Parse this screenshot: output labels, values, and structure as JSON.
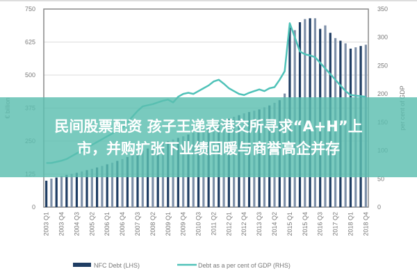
{
  "banner": {
    "line1": "民间股票配资 孩子王递表港交所寻求“A+H”上",
    "line2": "市，并购扩张下业绩回暖与商誉高企并存"
  },
  "chart_data": {
    "type": "bar+line",
    "ylabel_left": "€ billion",
    "ylabel_right": "per cent of GDP",
    "ylim_left": [
      0,
      750
    ],
    "yticks_left": [
      0,
      125,
      250,
      375,
      500,
      625,
      750
    ],
    "ylim_right": [
      0,
      350
    ],
    "yticks_right": [
      0,
      50,
      100,
      150,
      200,
      250,
      300,
      350
    ],
    "grid": true,
    "legend_position": "bottom",
    "x_start": "2003 Q1",
    "x_end": "2018 Q4",
    "xtick_labels": [
      "2003 Q1",
      "2003 Q4",
      "2004 Q3",
      "2005 Q2",
      "2006 Q1",
      "2006 Q4",
      "2007 Q3",
      "2008 Q2",
      "2009 Q1",
      "2009 Q4",
      "2010 Q3",
      "2011 Q2",
      "2012 Q1",
      "2012 Q4",
      "2013 Q3",
      "2014 Q2",
      "2015 Q1",
      "2015 Q4",
      "2016 Q3",
      "2017 Q2",
      "2018 Q1",
      "2018 Q4"
    ],
    "series": [
      {
        "name": "NFC Debt (LHS)",
        "type": "bar",
        "axis": "left",
        "color": "#1f3d63",
        "alt_color": "#7d8fa8",
        "values": [
          100,
          108,
          112,
          118,
          122,
          126,
          130,
          135,
          140,
          145,
          150,
          156,
          162,
          168,
          175,
          182,
          190,
          198,
          206,
          214,
          222,
          230,
          238,
          245,
          250,
          256,
          262,
          268,
          275,
          282,
          290,
          298,
          305,
          312,
          320,
          328,
          335,
          342,
          348,
          355,
          360,
          365,
          370,
          378,
          385,
          395,
          405,
          430,
          680,
          670,
          700,
          712,
          715,
          715,
          675,
          688,
          660,
          640,
          630,
          620,
          600,
          605,
          610,
          615
        ]
      },
      {
        "name": "Debt as a per cent of GDP (RHS)",
        "type": "line",
        "axis": "right",
        "color": "#4fc2b8",
        "values": [
          78,
          78,
          80,
          82,
          85,
          90,
          95,
          100,
          105,
          110,
          115,
          120,
          125,
          130,
          135,
          140,
          150,
          160,
          170,
          178,
          180,
          182,
          185,
          188,
          190,
          185,
          195,
          200,
          202,
          200,
          205,
          210,
          215,
          222,
          225,
          218,
          210,
          205,
          200,
          198,
          202,
          205,
          208,
          205,
          210,
          212,
          225,
          240,
          325,
          300,
          275,
          270,
          268,
          265,
          255,
          245,
          235,
          225,
          215,
          205,
          198,
          197,
          196,
          195
        ]
      }
    ]
  }
}
